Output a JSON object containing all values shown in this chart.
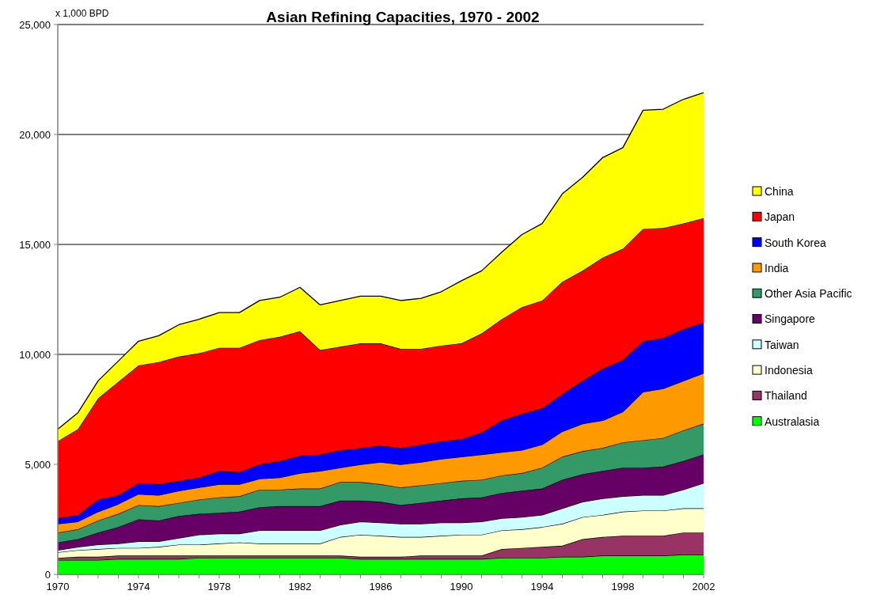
{
  "chart_data": {
    "type": "area",
    "stacked": true,
    "title": "Asian Refining Capacities, 1970 - 2002",
    "ylabel": "x 1,000 BPD",
    "x": [
      1970,
      1971,
      1972,
      1973,
      1974,
      1975,
      1976,
      1977,
      1978,
      1979,
      1980,
      1981,
      1982,
      1983,
      1984,
      1985,
      1986,
      1987,
      1988,
      1989,
      1990,
      1991,
      1992,
      1993,
      1994,
      1995,
      1996,
      1997,
      1998,
      1999,
      2000,
      2001,
      2002
    ],
    "xlim": [
      1970,
      2002
    ],
    "xticks": [
      1970,
      {
        "value": 1971,
        "label": null
      },
      {
        "value": 1972,
        "label": null
      },
      {
        "value": 1973,
        "label": null
      },
      1974,
      {
        "value": 1975,
        "label": null
      },
      {
        "value": 1976,
        "label": null
      },
      {
        "value": 1977,
        "label": null
      },
      1978,
      {
        "value": 1979,
        "label": null
      },
      {
        "value": 1980,
        "label": null
      },
      {
        "value": 1981,
        "label": null
      },
      1982,
      {
        "value": 1983,
        "label": null
      },
      {
        "value": 1984,
        "label": null
      },
      {
        "value": 1985,
        "label": null
      },
      1986,
      {
        "value": 1987,
        "label": null
      },
      {
        "value": 1988,
        "label": null
      },
      {
        "value": 1989,
        "label": null
      },
      1990,
      {
        "value": 1991,
        "label": null
      },
      {
        "value": 1992,
        "label": null
      },
      {
        "value": 1993,
        "label": null
      },
      1994,
      {
        "value": 1995,
        "label": null
      },
      {
        "value": 1996,
        "label": null
      },
      {
        "value": 1997,
        "label": null
      },
      1998,
      {
        "value": 1999,
        "label": null
      },
      {
        "value": 2000,
        "label": null
      },
      {
        "value": 2001,
        "label": null
      },
      2002
    ],
    "ylim": [
      0,
      25000
    ],
    "yticks": [
      0,
      {
        "value": 5000,
        "label": "5,000"
      },
      {
        "value": 10000,
        "label": "10,000"
      },
      {
        "value": 15000,
        "label": "15,000"
      },
      {
        "value": 20000,
        "label": "20,000"
      },
      {
        "value": 25000,
        "label": "25,000"
      }
    ],
    "grid": "y",
    "legend": "right",
    "series": [
      {
        "name": "Australasia",
        "color": "#00ff00",
        "values": [
          650,
          650,
          650,
          700,
          700,
          700,
          700,
          750,
          750,
          750,
          750,
          750,
          750,
          750,
          750,
          700,
          700,
          700,
          700,
          700,
          700,
          700,
          750,
          750,
          750,
          800,
          800,
          850,
          850,
          850,
          850,
          900,
          900
        ]
      },
      {
        "name": "Thailand",
        "color": "#993366",
        "values": [
          100,
          150,
          150,
          150,
          150,
          150,
          150,
          100,
          100,
          100,
          100,
          100,
          100,
          100,
          100,
          100,
          100,
          100,
          150,
          150,
          150,
          150,
          400,
          450,
          500,
          500,
          800,
          850,
          900,
          900,
          900,
          1000,
          1000
        ]
      },
      {
        "name": "Indonesia",
        "color": "#ffffcc",
        "values": [
          250,
          300,
          350,
          350,
          350,
          400,
          500,
          500,
          550,
          600,
          550,
          550,
          550,
          550,
          850,
          1000,
          950,
          900,
          850,
          900,
          950,
          950,
          850,
          850,
          900,
          1000,
          1000,
          1000,
          1100,
          1150,
          1150,
          1100,
          1100
        ]
      },
      {
        "name": "Taiwan",
        "color": "#ccffff",
        "values": [
          100,
          150,
          200,
          200,
          300,
          250,
          300,
          450,
          450,
          400,
          600,
          600,
          600,
          600,
          550,
          600,
          600,
          600,
          600,
          600,
          550,
          600,
          550,
          550,
          550,
          700,
          700,
          750,
          700,
          700,
          700,
          850,
          1150
        ]
      },
      {
        "name": "Singapore",
        "color": "#660066",
        "values": [
          350,
          350,
          550,
          750,
          1000,
          950,
          1000,
          950,
          950,
          1000,
          1050,
          1100,
          1100,
          1100,
          1100,
          950,
          950,
          850,
          950,
          1000,
          1100,
          1100,
          1150,
          1200,
          1200,
          1300,
          1250,
          1250,
          1300,
          1250,
          1300,
          1300,
          1300
        ]
      },
      {
        "name": "Other Asia Pacific",
        "color": "#339966",
        "values": [
          450,
          450,
          550,
          600,
          650,
          650,
          600,
          650,
          700,
          700,
          800,
          750,
          800,
          800,
          850,
          850,
          800,
          800,
          800,
          800,
          800,
          800,
          800,
          800,
          950,
          1050,
          1050,
          1050,
          1150,
          1250,
          1300,
          1400,
          1400
        ]
      },
      {
        "name": "India",
        "color": "#ff9900",
        "values": [
          400,
          350,
          400,
          450,
          500,
          500,
          550,
          550,
          600,
          550,
          500,
          550,
          700,
          800,
          650,
          800,
          1000,
          1050,
          1050,
          1100,
          1100,
          1150,
          1050,
          1050,
          1050,
          1150,
          1250,
          1250,
          1400,
          2200,
          2250,
          2250,
          2300
        ]
      },
      {
        "name": "South Korea",
        "color": "#0000ff",
        "values": [
          250,
          300,
          550,
          400,
          500,
          500,
          450,
          450,
          600,
          550,
          650,
          750,
          800,
          750,
          800,
          750,
          750,
          750,
          800,
          800,
          800,
          1000,
          1450,
          1650,
          1650,
          1700,
          1950,
          2350,
          2350,
          2300,
          2300,
          2350,
          2300
        ]
      },
      {
        "name": "Japan",
        "color": "#ff0000",
        "values": [
          3500,
          3900,
          4600,
          5150,
          5350,
          5550,
          5650,
          5650,
          5600,
          5650,
          5650,
          5650,
          5650,
          4750,
          4700,
          4750,
          4650,
          4500,
          4350,
          4350,
          4350,
          4500,
          4600,
          4850,
          4900,
          5100,
          5000,
          5050,
          5050,
          5100,
          5000,
          4800,
          4750
        ]
      },
      {
        "name": "China",
        "color": "#ffff00",
        "values": [
          550,
          750,
          800,
          950,
          1100,
          1200,
          1450,
          1550,
          1600,
          1600,
          1800,
          1800,
          2000,
          2050,
          2100,
          2150,
          2150,
          2200,
          2300,
          2450,
          2850,
          2850,
          3050,
          3300,
          3500,
          4000,
          4250,
          4550,
          4600,
          5400,
          5400,
          5650,
          5700
        ]
      }
    ]
  }
}
